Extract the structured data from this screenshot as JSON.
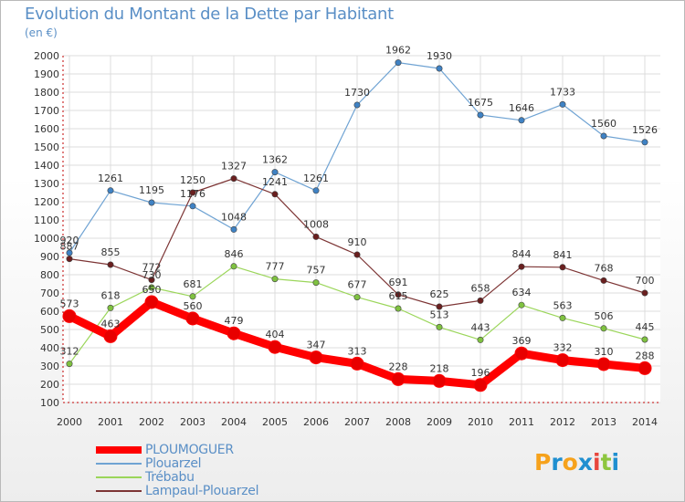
{
  "title": "Evolution du Montant de la Dette par Habitant",
  "unit": "(en €)",
  "logo": [
    "P",
    "r",
    "o",
    "x",
    "i",
    "t",
    "i"
  ],
  "logo_colors": [
    "#f6a21c",
    "#1f8fd0",
    "#f6a21c",
    "#1f8fd0",
    "#e8463c",
    "#8dc63f",
    "#1f8fd0"
  ],
  "chart_data": {
    "type": "line",
    "x": [
      "2000",
      "2001",
      "2002",
      "2003",
      "2004",
      "2005",
      "2006",
      "2007",
      "2008",
      "2009",
      "2010",
      "2011",
      "2012",
      "2013",
      "2014"
    ],
    "ylim": [
      100,
      2000
    ],
    "yticks": [
      100,
      200,
      300,
      400,
      500,
      600,
      700,
      800,
      900,
      1000,
      1100,
      1200,
      1300,
      1400,
      1500,
      1600,
      1700,
      1800,
      1900,
      2000
    ],
    "grid": true,
    "legend_position": "bottom-left",
    "series": [
      {
        "name": "PLOUMOGUER",
        "color": "#ff0000",
        "marker": "#e80000",
        "values": [
          573,
          463,
          650,
          560,
          479,
          404,
          347,
          313,
          228,
          218,
          196,
          369,
          332,
          310,
          288
        ]
      },
      {
        "name": "Plouarzel",
        "color": "#6fa3d3",
        "marker": "#3f82c4",
        "values": [
          920,
          1261,
          1195,
          1176,
          1048,
          1362,
          1261,
          1730,
          1962,
          1930,
          1675,
          1646,
          1733,
          1560,
          1526
        ]
      },
      {
        "name": "Trébabu",
        "color": "#9bd65a",
        "marker": "#7fc240",
        "values": [
          312,
          618,
          730,
          681,
          846,
          777,
          757,
          677,
          615,
          513,
          443,
          634,
          563,
          506,
          445
        ]
      },
      {
        "name": "Lampaul-Plouarzel",
        "color": "#7d3535",
        "marker": "#6a1f1f",
        "values": [
          887,
          855,
          772,
          1250,
          1327,
          1241,
          1008,
          910,
          691,
          625,
          658,
          844,
          841,
          768,
          700
        ]
      }
    ]
  }
}
